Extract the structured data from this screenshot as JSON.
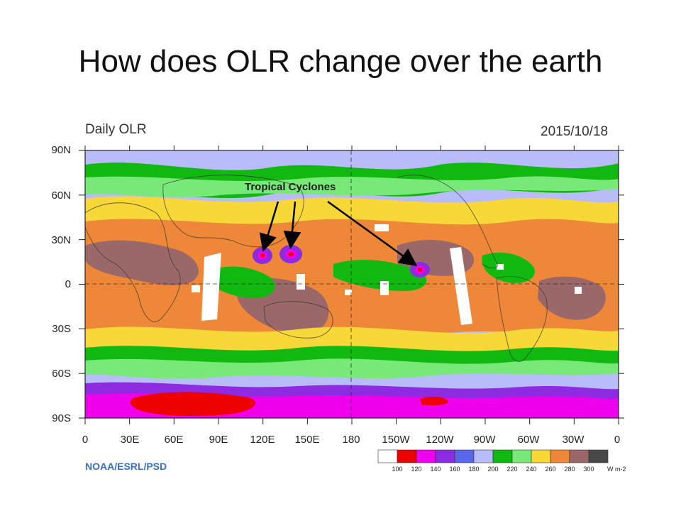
{
  "slide": {
    "title": "How does OLR change over the earth"
  },
  "figure": {
    "title": "Daily OLR",
    "date": "2015/10/18",
    "credit": "NOAA/ESRL/PSD",
    "annotation": "Tropical Cyclones",
    "lat_labels": [
      "90N",
      "60N",
      "30N",
      "0",
      "30S",
      "60S",
      "90S"
    ],
    "lon_labels": [
      "0",
      "30E",
      "60E",
      "90E",
      "120E",
      "150E",
      "180",
      "150W",
      "120W",
      "90W",
      "60W",
      "30W",
      "0"
    ],
    "colorbar": {
      "labels": [
        "100",
        "120",
        "140",
        "160",
        "180",
        "200",
        "220",
        "240",
        "260",
        "280",
        "300"
      ],
      "unit": "W m-2",
      "colors": [
        "#ffffff",
        "#ee0000",
        "#ee00ee",
        "#8e2ae0",
        "#5868e8",
        "#b8bcf8",
        "#10b810",
        "#78e878",
        "#f8d838",
        "#ee8838",
        "#9a6868",
        "#484848"
      ]
    },
    "map_colors": {
      "background": "#b8bcf8",
      "tropics": "#ee8838",
      "convective": "#9a6868",
      "midlat": "#f8d838",
      "green_dark": "#10b810",
      "green_light": "#78e878",
      "antarctic_magenta": "#ee00ee",
      "antarctic_violet": "#8e2ae0",
      "antarctic_red": "#ee0000"
    }
  }
}
